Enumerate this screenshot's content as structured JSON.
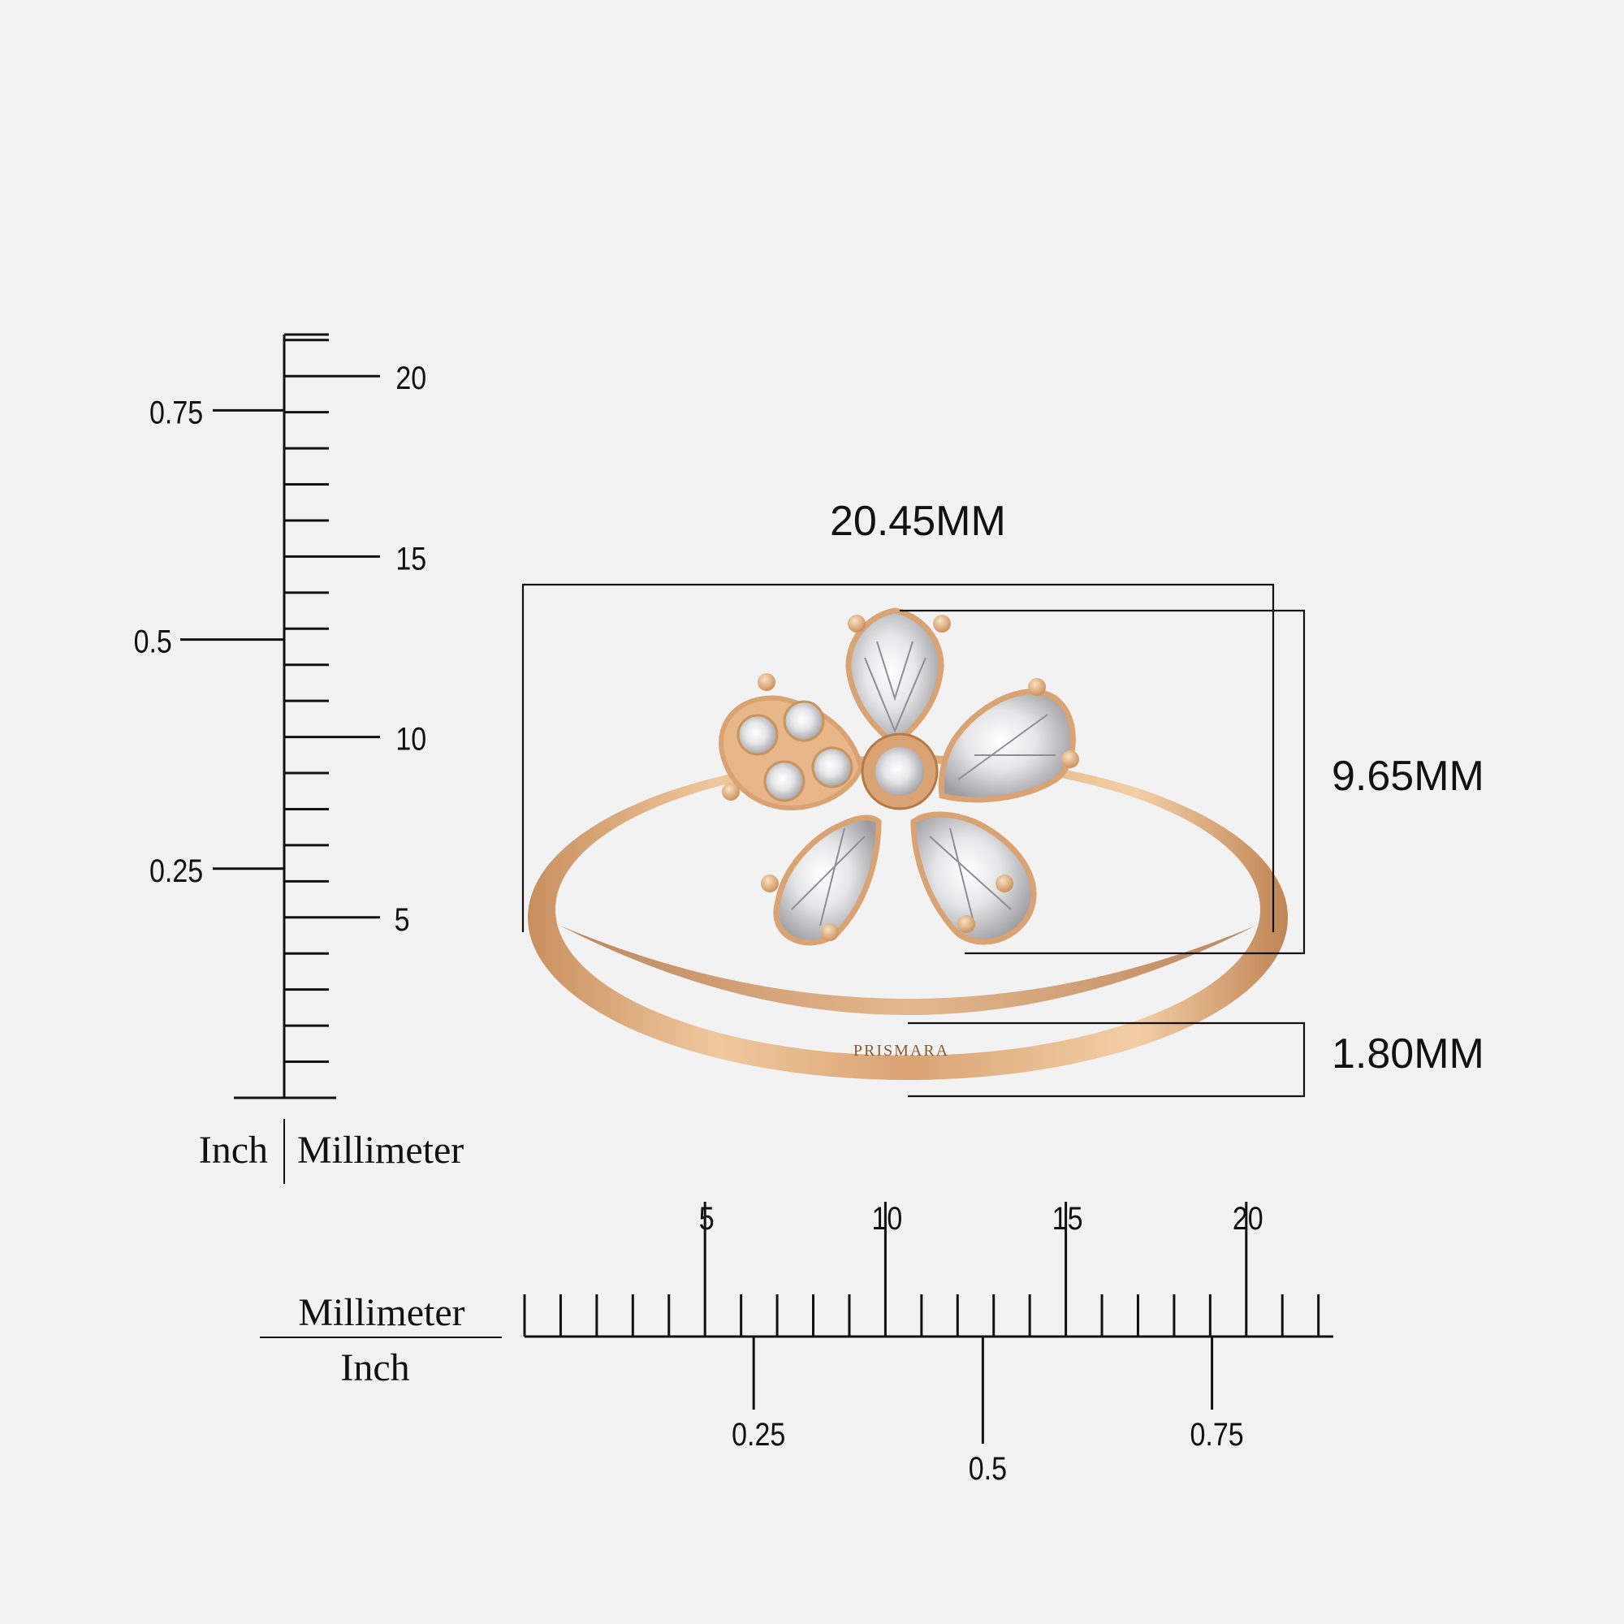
{
  "dimensions": {
    "width": "20.45MM",
    "height": "9.65MM",
    "band_width": "1.80MM"
  },
  "vertical_scale": {
    "mm_labels": [
      "5",
      "10",
      "15",
      "20"
    ],
    "inch_labels": [
      "0.25",
      "0.5",
      "0.75"
    ],
    "unit_left": "Inch",
    "unit_right": "Millimeter"
  },
  "horizontal_scale": {
    "mm_labels": [
      "5",
      "10",
      "15",
      "20"
    ],
    "inch_labels": [
      "0.25",
      "0.5",
      "0.75"
    ],
    "unit_top": "Millimeter",
    "unit_bottom": "Inch"
  },
  "ring": {
    "brand": "PRISMARA",
    "metal_color": "#d9a373",
    "stone_color": "#dcdcde"
  }
}
